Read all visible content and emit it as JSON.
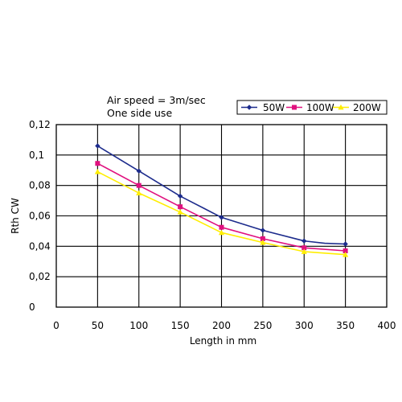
{
  "chart_data": {
    "type": "line",
    "annotations": [
      "Air speed = 3m/sec",
      "One side use"
    ],
    "xlabel": "Length in mm",
    "ylabel": "Rth  CW",
    "xlim": [
      0,
      400
    ],
    "ylim": [
      0,
      0.12
    ],
    "xticks": [
      0,
      50,
      100,
      150,
      200,
      250,
      300,
      350,
      400
    ],
    "yticks": [
      0,
      0.02,
      0.04,
      0.06,
      0.08,
      0.1,
      0.12
    ],
    "xtick_labels": [
      "0",
      "50",
      "100",
      "150",
      "200",
      "250",
      "300",
      "350",
      "400"
    ],
    "ytick_labels": [
      "0",
      "0,02",
      "0,04",
      "0,06",
      "0,08",
      "0,1",
      "0,12"
    ],
    "grid": true,
    "legend_position": "top-right",
    "series": [
      {
        "name": "50W",
        "color": "#1c2b8c",
        "marker": "diamond",
        "x": [
          50,
          100,
          150,
          200,
          250,
          300,
          325,
          350
        ],
        "y": [
          0.106,
          0.0895,
          0.073,
          0.059,
          0.0505,
          0.0435,
          0.042,
          0.0415
        ]
      },
      {
        "name": "100W",
        "color": "#e0117f",
        "marker": "square",
        "x": [
          50,
          100,
          150,
          200,
          250,
          300,
          350
        ],
        "y": [
          0.0945,
          0.08,
          0.066,
          0.0525,
          0.045,
          0.039,
          0.037
        ]
      },
      {
        "name": "200W",
        "color": "#ffee00",
        "marker": "triangle",
        "x": [
          50,
          100,
          150,
          200,
          250,
          300,
          350
        ],
        "y": [
          0.089,
          0.075,
          0.0625,
          0.049,
          0.0425,
          0.0365,
          0.0345
        ]
      }
    ]
  }
}
